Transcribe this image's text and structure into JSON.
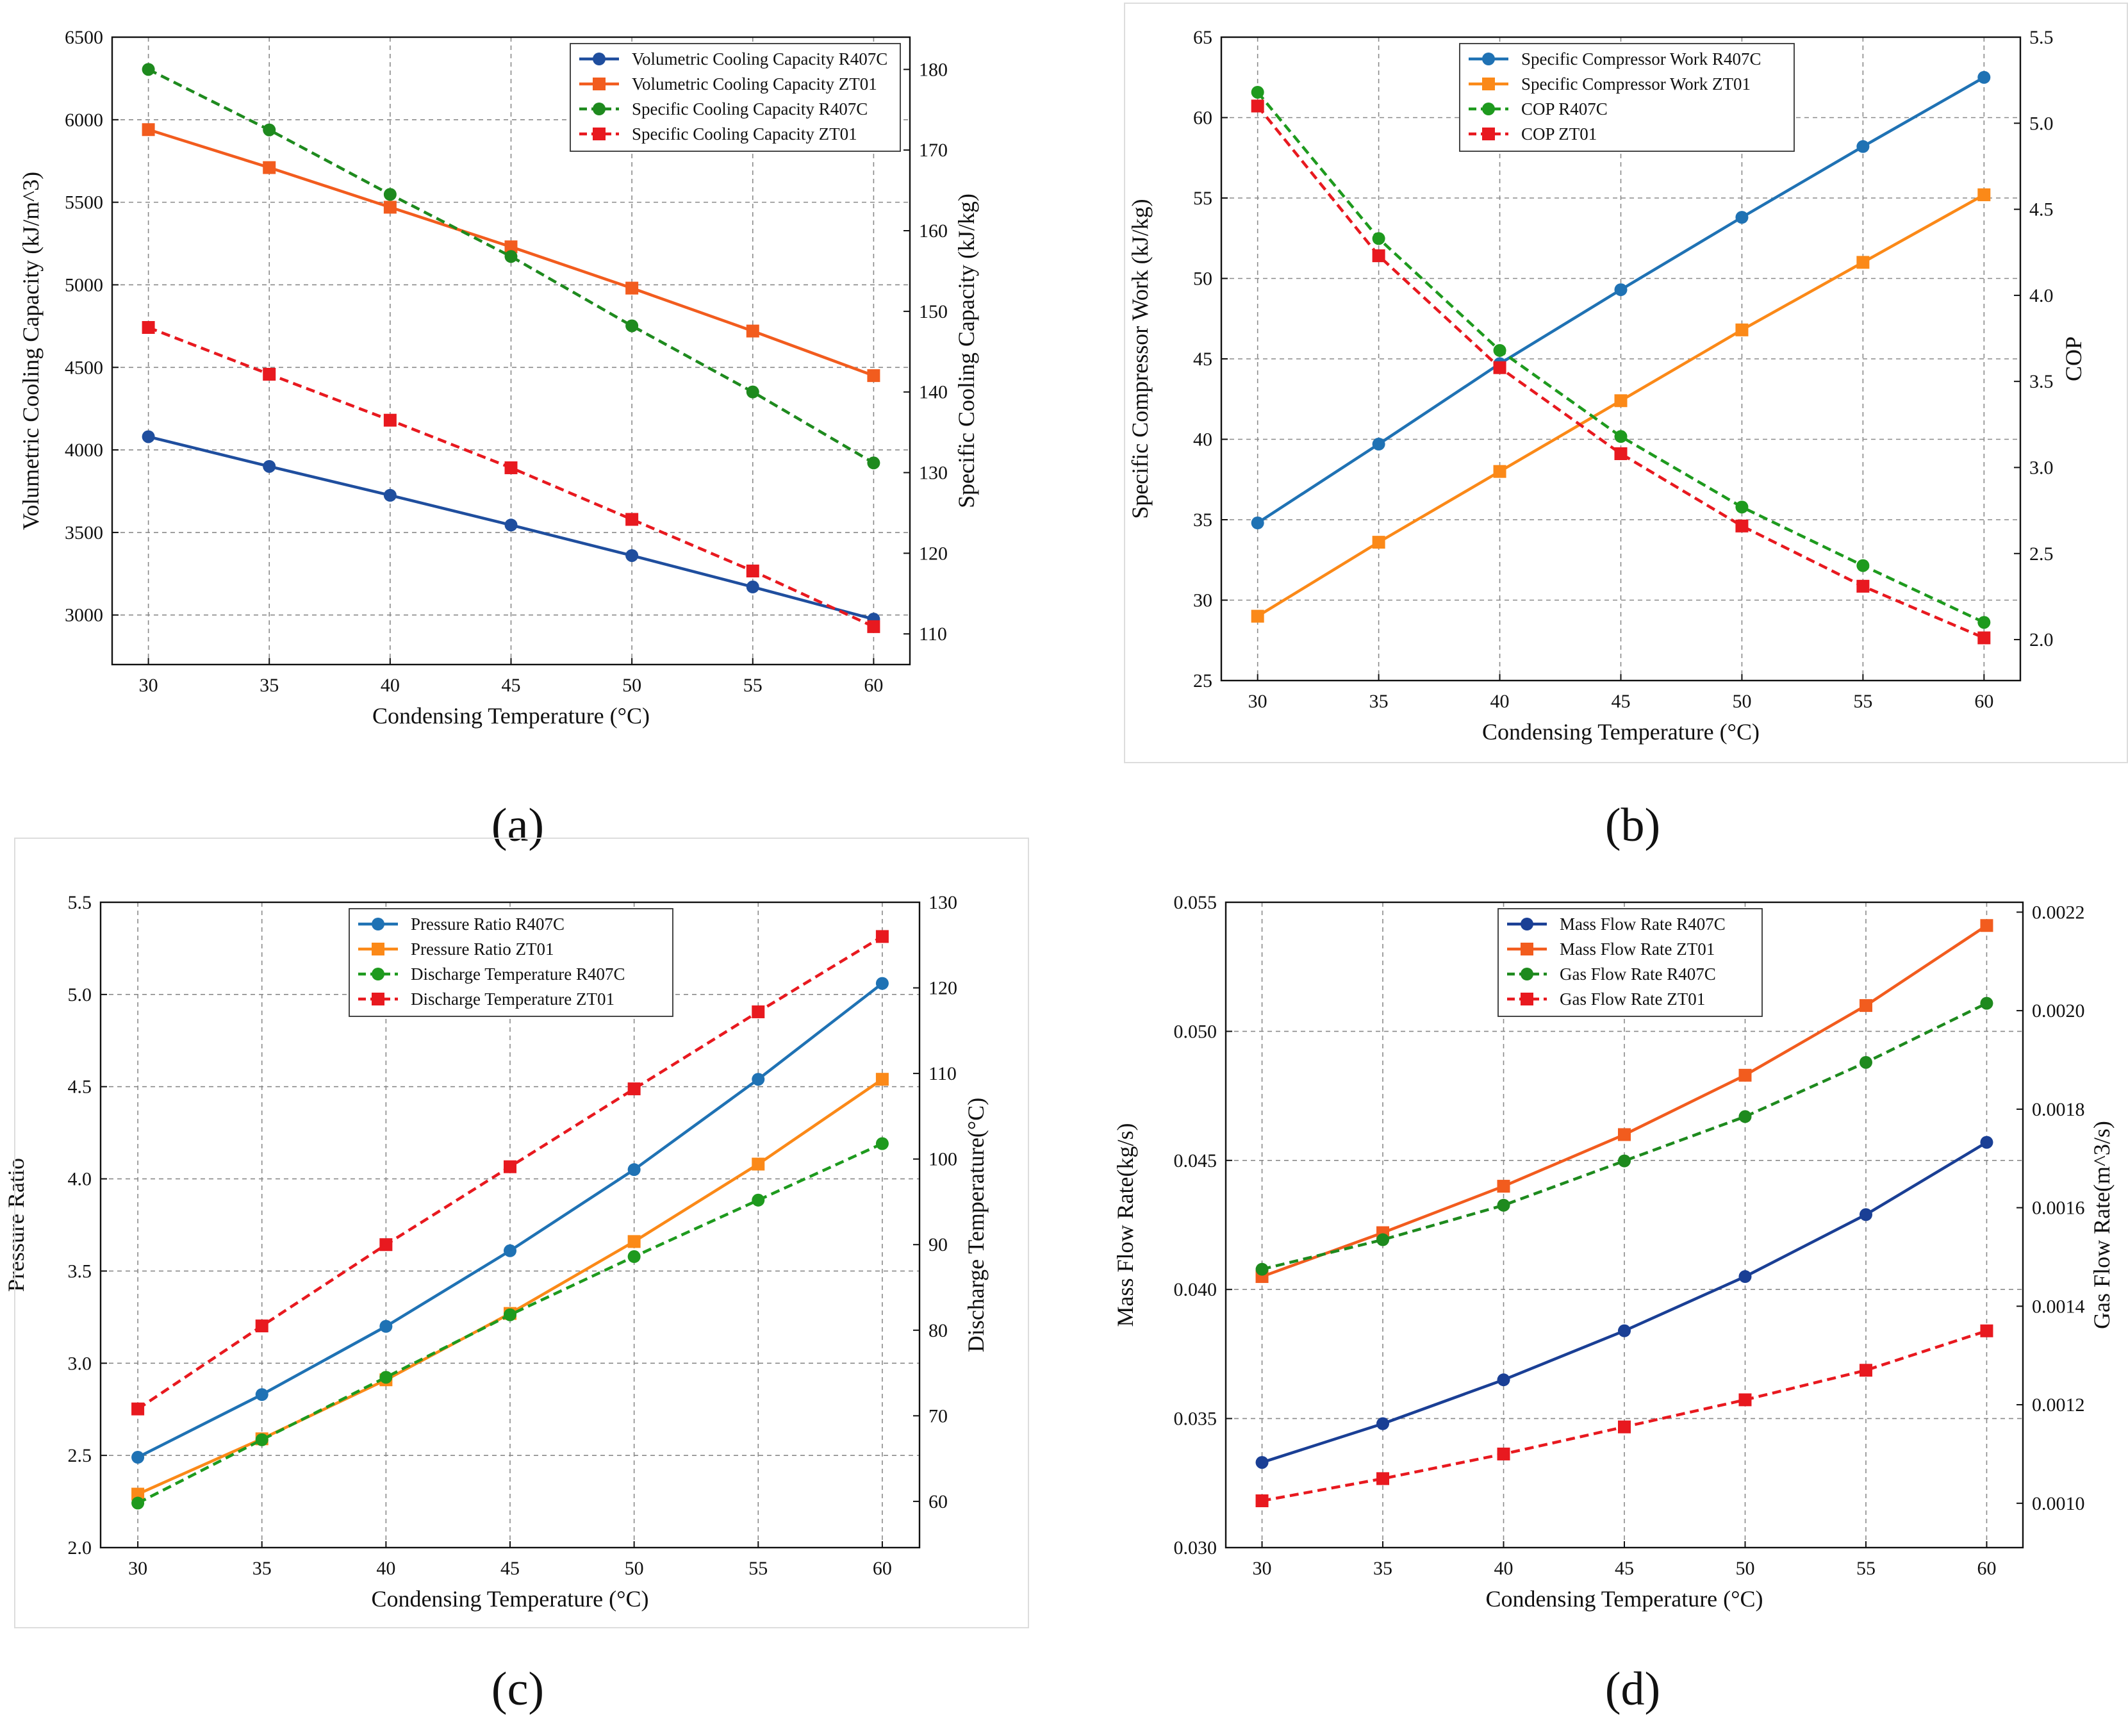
{
  "chart_data": [
    {
      "type": "line",
      "panel_label": "(a)",
      "xlabel": "Condensing Temperature (°C)",
      "ylabel": "Volumetric Cooling Capacity (kJ/m^3)",
      "y2label": "Specific Cooling Capacity (kJ/kg)",
      "x": [
        30,
        35,
        40,
        45,
        50,
        55,
        60
      ],
      "xlim": [
        28.5,
        61.5
      ],
      "ylim": [
        2700,
        6500
      ],
      "y2lim": [
        106.2,
        184.0
      ],
      "yticks": [
        3000,
        3500,
        4000,
        4500,
        5000,
        5500,
        6000,
        6500
      ],
      "y2ticks": [
        110,
        120,
        130,
        140,
        150,
        160,
        170,
        180
      ],
      "legend_position": "top-right",
      "series": [
        {
          "name": "Volumetric Cooling Capacity R407C",
          "axis": "left",
          "color": "#1f4e9e",
          "marker": "circle",
          "dashed": false,
          "values": [
            4080,
            3900,
            3725,
            3545,
            3360,
            3170,
            2975
          ]
        },
        {
          "name": "Volumetric Cooling Capacity ZT01",
          "axis": "left",
          "color": "#f25c1e",
          "marker": "square",
          "dashed": false,
          "values": [
            5940,
            5710,
            5470,
            5230,
            4980,
            4720,
            4450
          ]
        },
        {
          "name": "Specific Cooling Capacity R407C",
          "axis": "right",
          "color": "#1e8a1e",
          "marker": "circle",
          "dashed": true,
          "values": [
            180.0,
            172.5,
            164.5,
            156.8,
            148.2,
            140.0,
            131.2
          ]
        },
        {
          "name": "Specific Cooling Capacity ZT01",
          "axis": "right",
          "color": "#e8191f",
          "marker": "square",
          "dashed": true,
          "values": [
            148.0,
            142.2,
            136.5,
            130.6,
            124.2,
            117.8,
            110.9
          ]
        }
      ]
    },
    {
      "type": "line",
      "panel_label": "(b)",
      "xlabel": "Condensing Temperature (°C)",
      "ylabel": "Specific Compressor Work (kJ/kg)",
      "y2label": "COP",
      "x": [
        30,
        35,
        40,
        45,
        50,
        55,
        60
      ],
      "xlim": [
        28.5,
        61.5
      ],
      "ylim": [
        25,
        65
      ],
      "y2lim": [
        1.762,
        5.5
      ],
      "yticks": [
        25,
        30,
        35,
        40,
        45,
        50,
        55,
        60,
        65
      ],
      "y2ticks": [
        2.0,
        2.5,
        3.0,
        3.5,
        4.0,
        4.5,
        5.0,
        5.5
      ],
      "legend_position": "top-center",
      "series": [
        {
          "name": "Specific Compressor Work R407C",
          "axis": "left",
          "color": "#1f72b4",
          "marker": "circle",
          "dashed": false,
          "values": [
            34.8,
            39.7,
            44.7,
            49.3,
            53.8,
            58.2,
            62.5
          ]
        },
        {
          "name": "Specific Compressor Work ZT01",
          "axis": "left",
          "color": "#fb8918",
          "marker": "square",
          "dashed": false,
          "values": [
            29.0,
            33.6,
            38.0,
            42.4,
            46.8,
            51.0,
            55.2
          ]
        },
        {
          "name": "COP R407C",
          "axis": "right",
          "color": "#1e9a1e",
          "marker": "circle",
          "dashed": true,
          "values": [
            5.18,
            4.33,
            3.68,
            3.18,
            2.77,
            2.43,
            2.1
          ]
        },
        {
          "name": "COP ZT01",
          "axis": "right",
          "color": "#e8191f",
          "marker": "square",
          "dashed": true,
          "values": [
            5.1,
            4.23,
            3.58,
            3.08,
            2.66,
            2.31,
            2.01
          ]
        }
      ]
    },
    {
      "type": "line",
      "panel_label": "(c)",
      "xlabel": "Condensing Temperature (°C)",
      "ylabel": "Pressure Ratio",
      "y2label": "Discharge Temperature(°C)",
      "x": [
        30,
        35,
        40,
        45,
        50,
        55,
        60
      ],
      "xlim": [
        28.5,
        61.5
      ],
      "ylim": [
        2.0,
        5.5
      ],
      "y2lim": [
        54.6,
        130
      ],
      "yticks": [
        2.0,
        2.5,
        3.0,
        3.5,
        4.0,
        4.5,
        5.0,
        5.5
      ],
      "y2ticks": [
        60,
        70,
        80,
        90,
        100,
        110,
        120,
        130
      ],
      "legend_position": "top-center",
      "series": [
        {
          "name": "Pressure Ratio R407C",
          "axis": "left",
          "color": "#1f72b4",
          "marker": "circle",
          "dashed": false,
          "values": [
            2.49,
            2.83,
            3.2,
            3.61,
            4.05,
            4.54,
            5.06
          ]
        },
        {
          "name": "Pressure Ratio ZT01",
          "axis": "left",
          "color": "#fb8918",
          "marker": "square",
          "dashed": false,
          "values": [
            2.29,
            2.59,
            2.91,
            3.27,
            3.66,
            4.08,
            4.54
          ]
        },
        {
          "name": "Discharge Temperature R407C",
          "axis": "right",
          "color": "#1e9a1e",
          "marker": "circle",
          "dashed": true,
          "values": [
            59.8,
            67.2,
            74.5,
            81.8,
            88.6,
            95.2,
            101.8
          ]
        },
        {
          "name": "Discharge Temperature ZT01",
          "axis": "right",
          "color": "#e8191f",
          "marker": "square",
          "dashed": true,
          "values": [
            70.8,
            80.5,
            90.0,
            99.1,
            108.2,
            117.2,
            126.0
          ]
        }
      ]
    },
    {
      "type": "line",
      "panel_label": "(d)",
      "xlabel": "Condensing Temperature (°C)",
      "ylabel": "Mass Flow Rate(kg/s)",
      "y2label": "Gas Flow Rate(m^3/s)",
      "x": [
        30,
        35,
        40,
        45,
        50,
        55,
        60
      ],
      "xlim": [
        28.5,
        61.5
      ],
      "ylim": [
        0.03,
        0.055
      ],
      "y2lim": [
        0.00091,
        0.00222
      ],
      "yticks": [
        0.03,
        0.035,
        0.04,
        0.045,
        0.05,
        0.055
      ],
      "y2ticks": [
        0.001,
        0.0012,
        0.0014,
        0.0016,
        0.0018,
        0.002,
        0.0022
      ],
      "legend_position": "top-center",
      "series": [
        {
          "name": "Mass Flow Rate R407C",
          "axis": "left",
          "color": "#1a3f95",
          "marker": "circle",
          "dashed": false,
          "values": [
            0.0333,
            0.0348,
            0.0365,
            0.0384,
            0.0405,
            0.0429,
            0.0457
          ]
        },
        {
          "name": "Mass Flow Rate ZT01",
          "axis": "left",
          "color": "#f25c1e",
          "marker": "square",
          "dashed": false,
          "values": [
            0.0405,
            0.0422,
            0.044,
            0.046,
            0.0483,
            0.051,
            0.0541
          ]
        },
        {
          "name": "Gas Flow Rate R407C",
          "axis": "right",
          "color": "#1e8a1e",
          "marker": "circle",
          "dashed": true,
          "values": [
            0.001475,
            0.001535,
            0.001605,
            0.001695,
            0.001785,
            0.001895,
            0.002015
          ]
        },
        {
          "name": "Gas Flow Rate ZT01",
          "axis": "right",
          "color": "#e8191f",
          "marker": "square",
          "dashed": true,
          "values": [
            0.001005,
            0.00105,
            0.0011,
            0.001155,
            0.00121,
            0.00127,
            0.00135
          ]
        }
      ]
    }
  ]
}
